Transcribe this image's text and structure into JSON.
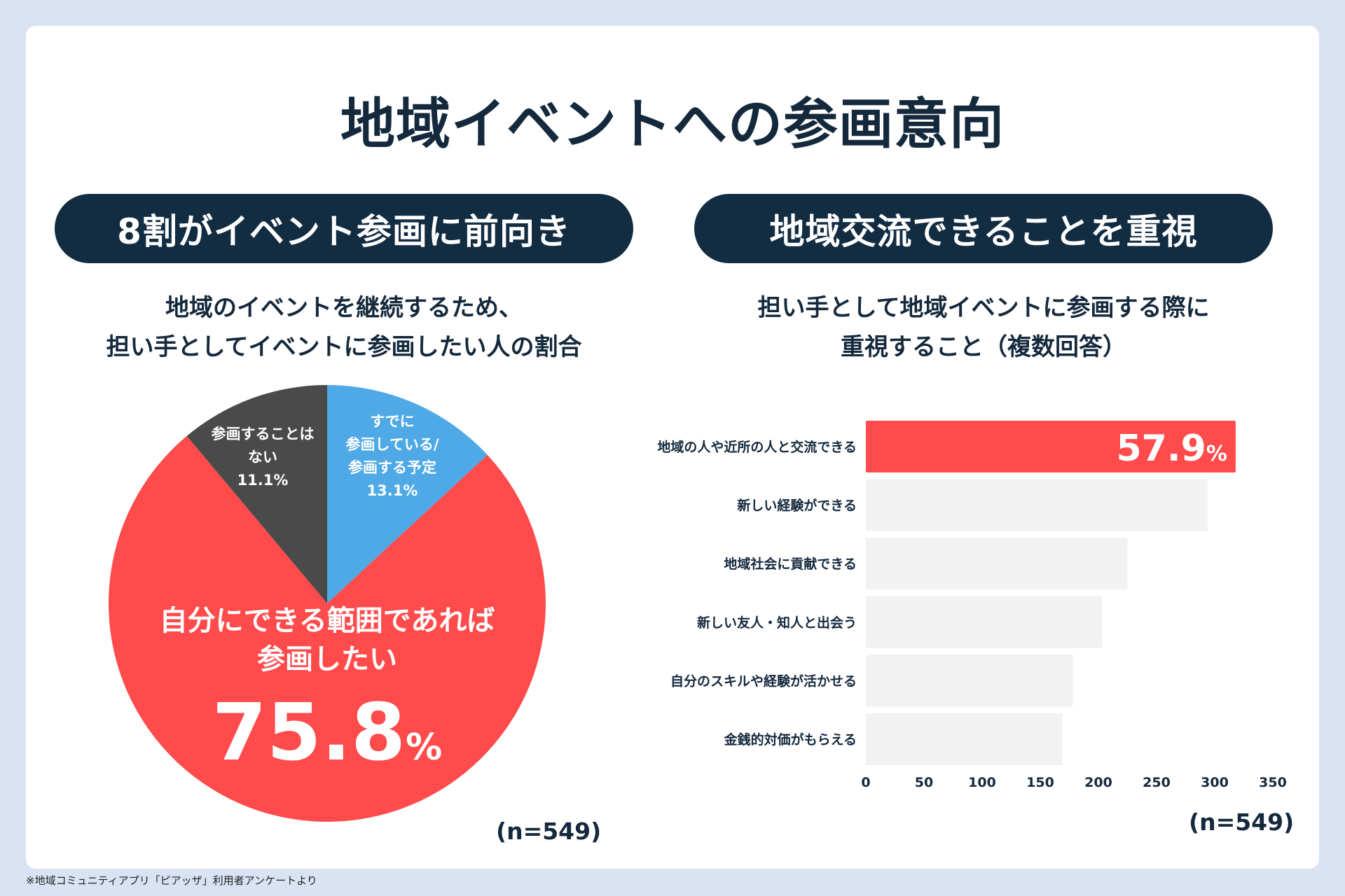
{
  "title": "地域イベントへの参画意向",
  "left_panel": {
    "heading": "8割がイベント参画に前向き",
    "subtitle_line1": "地域のイベントを継続するため、",
    "subtitle_line2": "担い手としてイベントに参画したい人の割合",
    "n_label": "(n=549)"
  },
  "right_panel": {
    "heading": "地域交流できることを重視",
    "subtitle_line1": "担い手として地域イベントに参画する際に",
    "subtitle_line2": "重視すること（複数回答）",
    "n_label": "(n=549)"
  },
  "footnote": "※地域コミュニティアプリ「ピアッザ」利用者アンケートより",
  "colors": {
    "red": "#ff4b4b",
    "blue": "#4fa9e6",
    "dark": "#4a4a4a",
    "bar_gray": "#f2f2f2",
    "navy": "#122c42"
  },
  "chart_data": [
    {
      "type": "pie",
      "slices": [
        {
          "label_lines": [
            "すでに",
            "参画している/",
            "参画する予定"
          ],
          "value": 13.1,
          "value_label": "13.1%",
          "color": "#4fa9e6"
        },
        {
          "label_lines": [
            "自分にできる範囲であれば",
            "参画したい"
          ],
          "value": 75.8,
          "value_label": "75.8",
          "unit": "%",
          "color": "#ff4b4b"
        },
        {
          "label_lines": [
            "参画することは",
            "ない"
          ],
          "value": 11.1,
          "value_label": "11.1%",
          "color": "#4a4a4a"
        }
      ]
    },
    {
      "type": "bar",
      "orientation": "horizontal",
      "categories": [
        "地域の人や近所の人と交流できる",
        "新しい経験ができる",
        "地域社会に貢献できる",
        "新しい友人・知人と出会う",
        "自分のスキルや経験が活かせる",
        "金銭的対価がもらえる"
      ],
      "values": [
        318,
        294,
        225,
        203,
        178,
        169
      ],
      "highlight_index": 0,
      "highlight_label": "57.9",
      "highlight_unit": "%",
      "xlim": [
        0,
        350
      ],
      "xticks": [
        0,
        50,
        100,
        150,
        200,
        250,
        300,
        350
      ]
    }
  ]
}
